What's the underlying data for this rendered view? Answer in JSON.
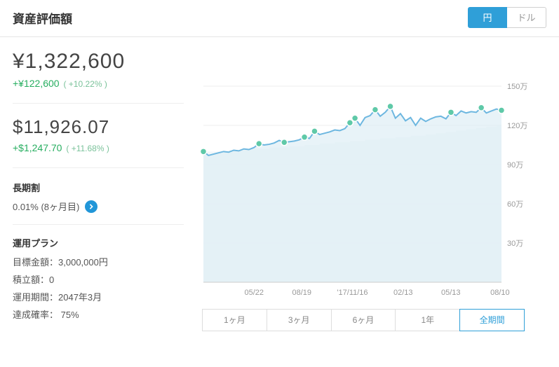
{
  "header": {
    "title": "資産評価額",
    "currency_yen": "円",
    "currency_usd": "ドル",
    "active": "yen"
  },
  "yen": {
    "amount": "¥1,322,600",
    "delta": "+¥122,600",
    "pct": "( +10.22% )"
  },
  "usd": {
    "amount": "$11,926.07",
    "delta": "+$1,247.70",
    "pct": "( +11.68% )"
  },
  "longterm": {
    "title": "長期割",
    "value": "0.01% (8ヶ月目)"
  },
  "plan": {
    "title": "運用プラン",
    "target_label": "目標金額：",
    "target_value": "3,000,000円",
    "reserve_label": "積立額：",
    "reserve_value": "0",
    "period_label": "運用期間：",
    "period_value": "2047年3月",
    "prob_label": "達成確率： ",
    "prob_value": "75%"
  },
  "chart": {
    "type": "line",
    "ylim": [
      0,
      1500000
    ],
    "yticks": [
      300000,
      600000,
      900000,
      1200000,
      1500000
    ],
    "ytick_labels": [
      "30万",
      "60万",
      "90万",
      "120万",
      "150万"
    ],
    "xtick_labels": [
      "05/22",
      "08/19",
      "'17/11/16",
      "02/13",
      "05/13",
      "08/10"
    ],
    "xtick_positions": [
      0.17,
      0.33,
      0.5,
      0.67,
      0.83,
      0.995
    ],
    "line_color": "#6db7e0",
    "area_color": "#dcedf5",
    "step_color": "#f2f7fa",
    "dot_color": "#5fc9a8",
    "background_color": "#ffffff",
    "grid_color": "#eeeeee",
    "line_width": 2,
    "series": [
      1000000,
      970000,
      980000,
      990000,
      1000000,
      995000,
      1010000,
      1005000,
      1020000,
      1015000,
      1030000,
      1060000,
      1050000,
      1055000,
      1065000,
      1085000,
      1070000,
      1075000,
      1080000,
      1090000,
      1110000,
      1100000,
      1155000,
      1130000,
      1140000,
      1150000,
      1165000,
      1160000,
      1175000,
      1220000,
      1255000,
      1200000,
      1260000,
      1275000,
      1320000,
      1270000,
      1300000,
      1345000,
      1255000,
      1290000,
      1235000,
      1260000,
      1200000,
      1255000,
      1230000,
      1250000,
      1265000,
      1270000,
      1250000,
      1300000,
      1275000,
      1310000,
      1295000,
      1305000,
      1300000,
      1335000,
      1295000,
      1310000,
      1325000,
      1315000
    ],
    "step_series": [
      1000000,
      1000000,
      1000000,
      1000000,
      1000000,
      1010000,
      1010000,
      1010000,
      1010000,
      1020000,
      1020000,
      1020000,
      1020000,
      1030000,
      1030000,
      1030000,
      1030000,
      1040000,
      1040000,
      1040000,
      1050000,
      1050000,
      1050000,
      1060000,
      1060000,
      1060000,
      1070000,
      1070000,
      1070000,
      1080000,
      1080000,
      1080000,
      1090000,
      1090000,
      1090000,
      1100000,
      1100000,
      1100000,
      1110000,
      1110000,
      1110000,
      1120000,
      1120000,
      1120000,
      1130000,
      1130000,
      1140000,
      1140000,
      1150000,
      1150000,
      1160000,
      1160000,
      1170000,
      1170000,
      1180000,
      1180000,
      1190000,
      1190000,
      1200000,
      1200000
    ],
    "dots": [
      {
        "i": 0,
        "v": 1000000
      },
      {
        "i": 11,
        "v": 1060000
      },
      {
        "i": 16,
        "v": 1070000
      },
      {
        "i": 20,
        "v": 1110000
      },
      {
        "i": 22,
        "v": 1155000
      },
      {
        "i": 29,
        "v": 1220000
      },
      {
        "i": 30,
        "v": 1255000
      },
      {
        "i": 34,
        "v": 1320000
      },
      {
        "i": 37,
        "v": 1345000
      },
      {
        "i": 49,
        "v": 1300000
      },
      {
        "i": 55,
        "v": 1335000
      },
      {
        "i": 59,
        "v": 1315000
      }
    ]
  },
  "ranges": {
    "items": [
      "1ヶ月",
      "3ヶ月",
      "6ヶ月",
      "1年",
      "全期間"
    ],
    "active_index": 4
  }
}
